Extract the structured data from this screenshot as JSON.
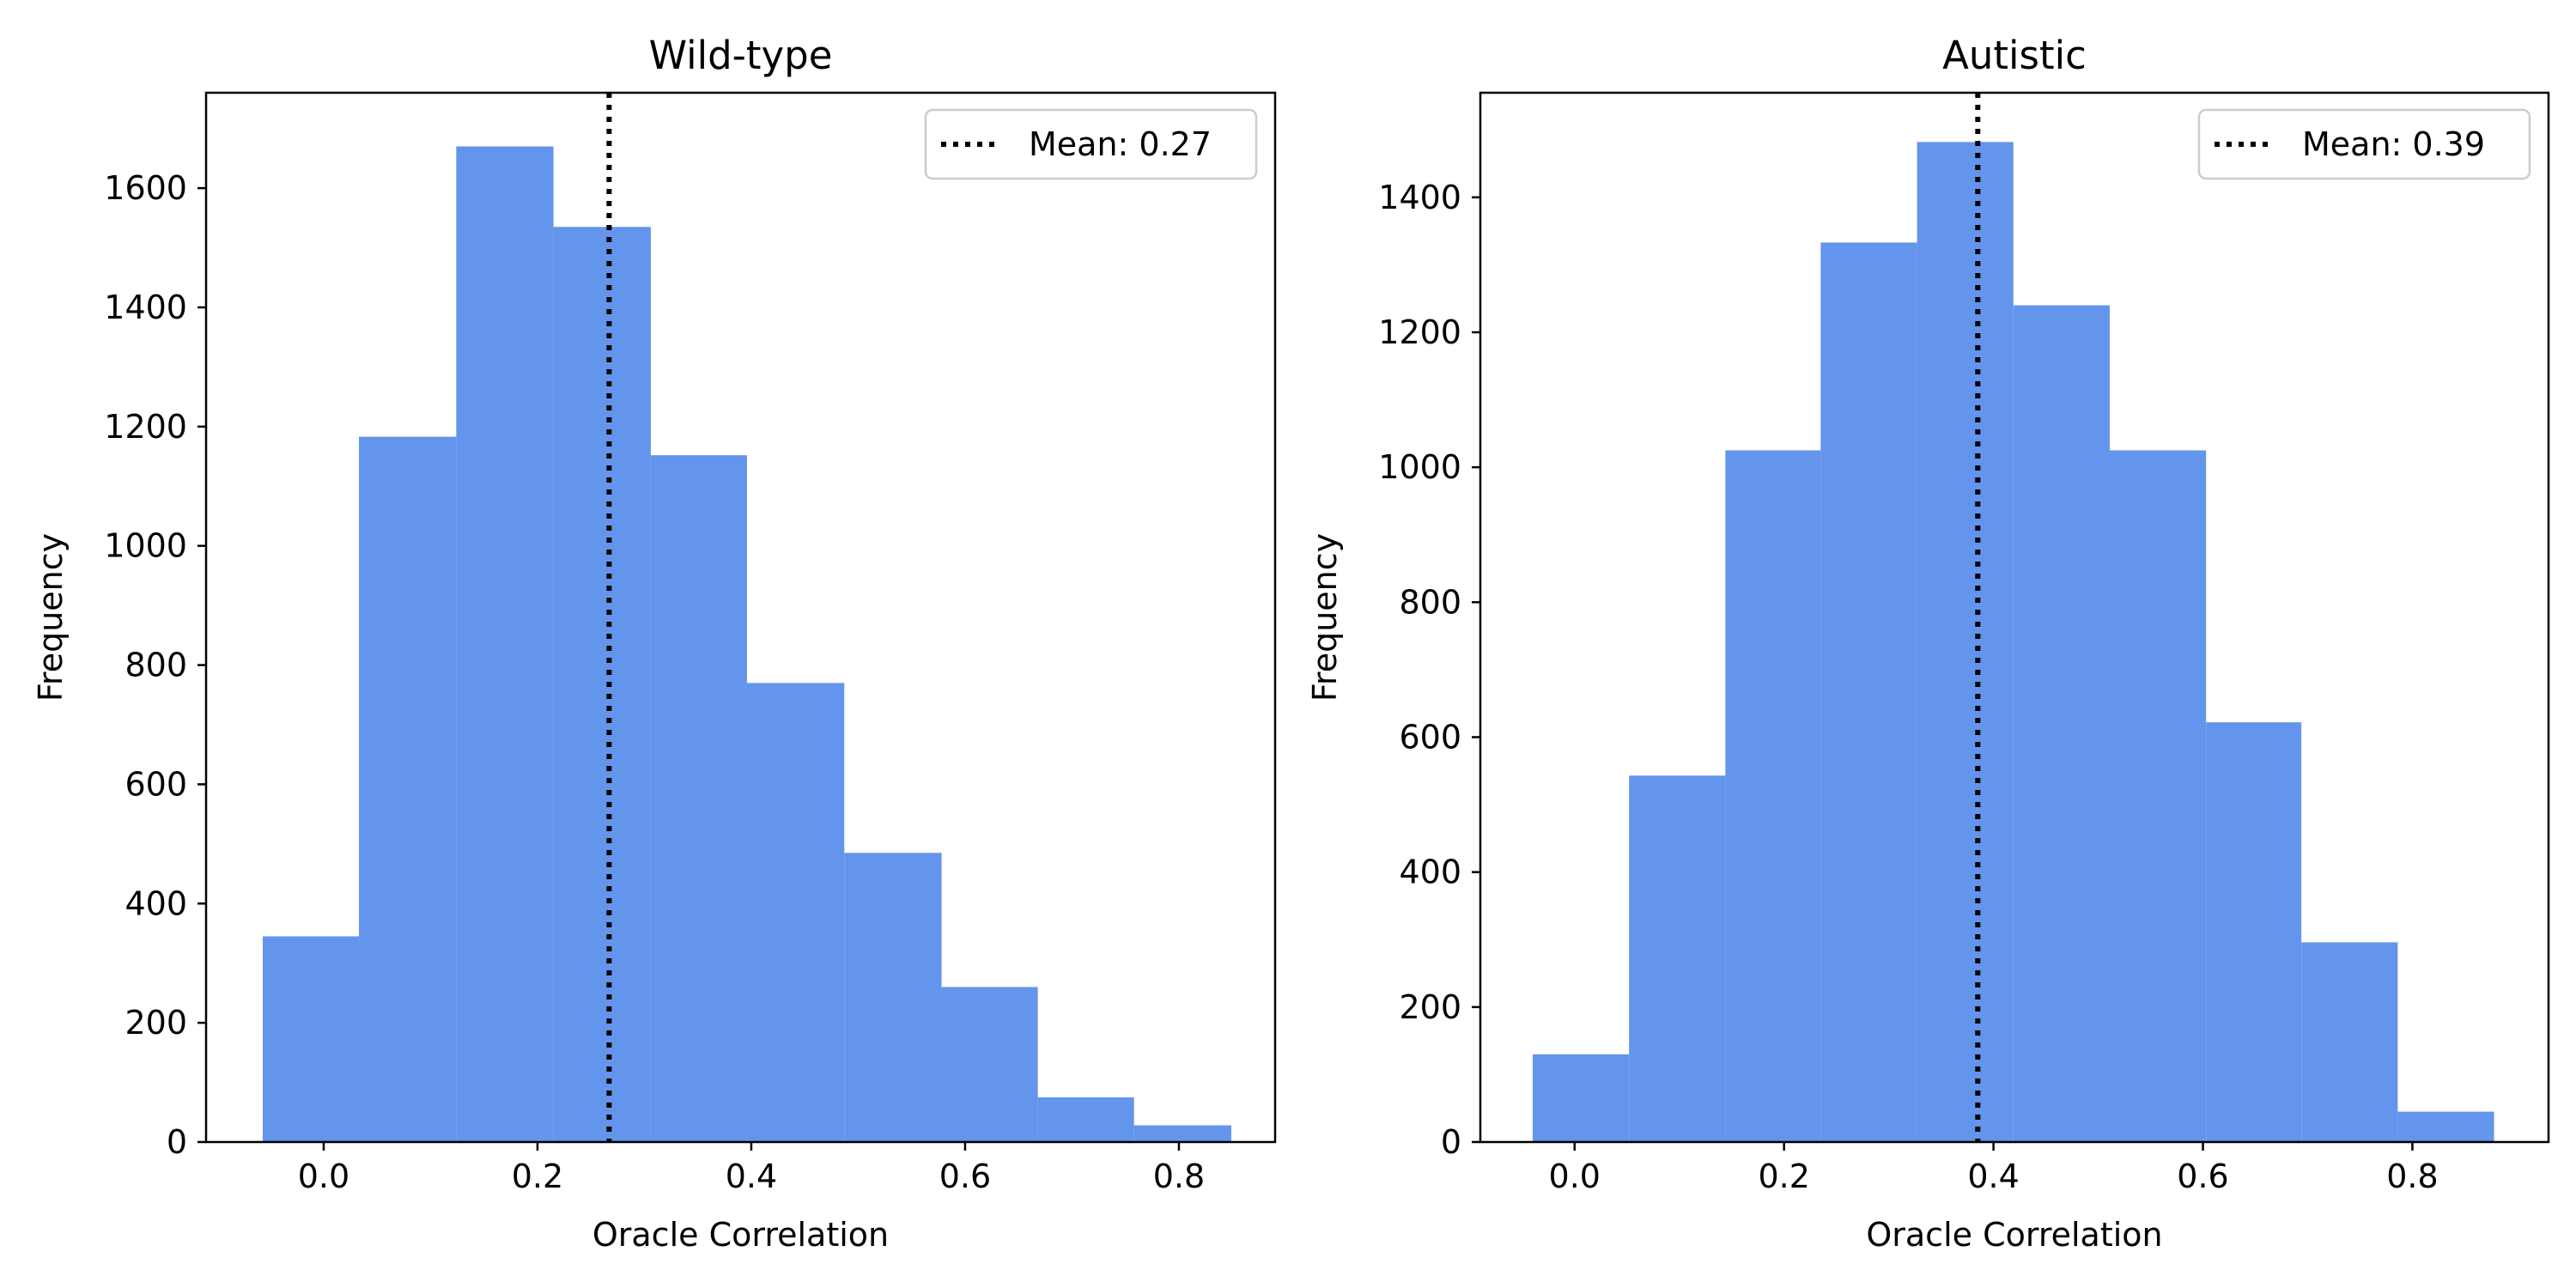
{
  "chart_data": [
    {
      "type": "histogram",
      "title": "Wild-type",
      "xlabel": "Oracle Correlation",
      "ylabel": "Frequency",
      "xlim": [
        -0.11,
        0.89
      ],
      "ylim": [
        0,
        1760
      ],
      "xticks": [
        0.0,
        0.2,
        0.4,
        0.6,
        0.8
      ],
      "xtick_labels": [
        "0.0",
        "0.2",
        "0.4",
        "0.6",
        "0.8"
      ],
      "yticks": [
        0,
        200,
        400,
        600,
        800,
        1000,
        1200,
        1400,
        1600
      ],
      "ytick_labels": [
        "0",
        "200",
        "400",
        "600",
        "800",
        "1000",
        "1200",
        "1400",
        "1600"
      ],
      "bin_edges": [
        -0.057,
        0.033,
        0.124,
        0.215,
        0.306,
        0.396,
        0.487,
        0.578,
        0.668,
        0.758,
        0.849
      ],
      "values": [
        345,
        1183,
        1670,
        1535,
        1152,
        770,
        485,
        260,
        75,
        28
      ],
      "bar_color": "#6495ED",
      "mean_line": {
        "x": 0.267,
        "style": "dotted",
        "color": "#000000"
      },
      "legend": {
        "label": "Mean: 0.27",
        "position": "upper right"
      },
      "grid": false
    },
    {
      "type": "histogram",
      "title": "Autistic",
      "xlabel": "Oracle Correlation",
      "ylabel": "Frequency",
      "xlim": [
        -0.09,
        0.93
      ],
      "ylim": [
        0,
        1555
      ],
      "xticks": [
        0.0,
        0.2,
        0.4,
        0.6,
        0.8
      ],
      "xtick_labels": [
        "0.0",
        "0.2",
        "0.4",
        "0.6",
        "0.8"
      ],
      "yticks": [
        0,
        200,
        400,
        600,
        800,
        1000,
        1200,
        1400
      ],
      "ytick_labels": [
        "0",
        "200",
        "400",
        "600",
        "800",
        "1000",
        "1200",
        "1400"
      ],
      "bin_edges": [
        -0.04,
        0.052,
        0.144,
        0.235,
        0.327,
        0.419,
        0.511,
        0.603,
        0.694,
        0.786,
        0.878
      ],
      "values": [
        130,
        543,
        1025,
        1333,
        1482,
        1240,
        1025,
        622,
        296,
        45
      ],
      "bar_color": "#6495ED",
      "mean_line": {
        "x": 0.385,
        "style": "dotted",
        "color": "#000000"
      },
      "legend": {
        "label": "Mean: 0.39",
        "position": "upper right"
      },
      "grid": false
    }
  ]
}
